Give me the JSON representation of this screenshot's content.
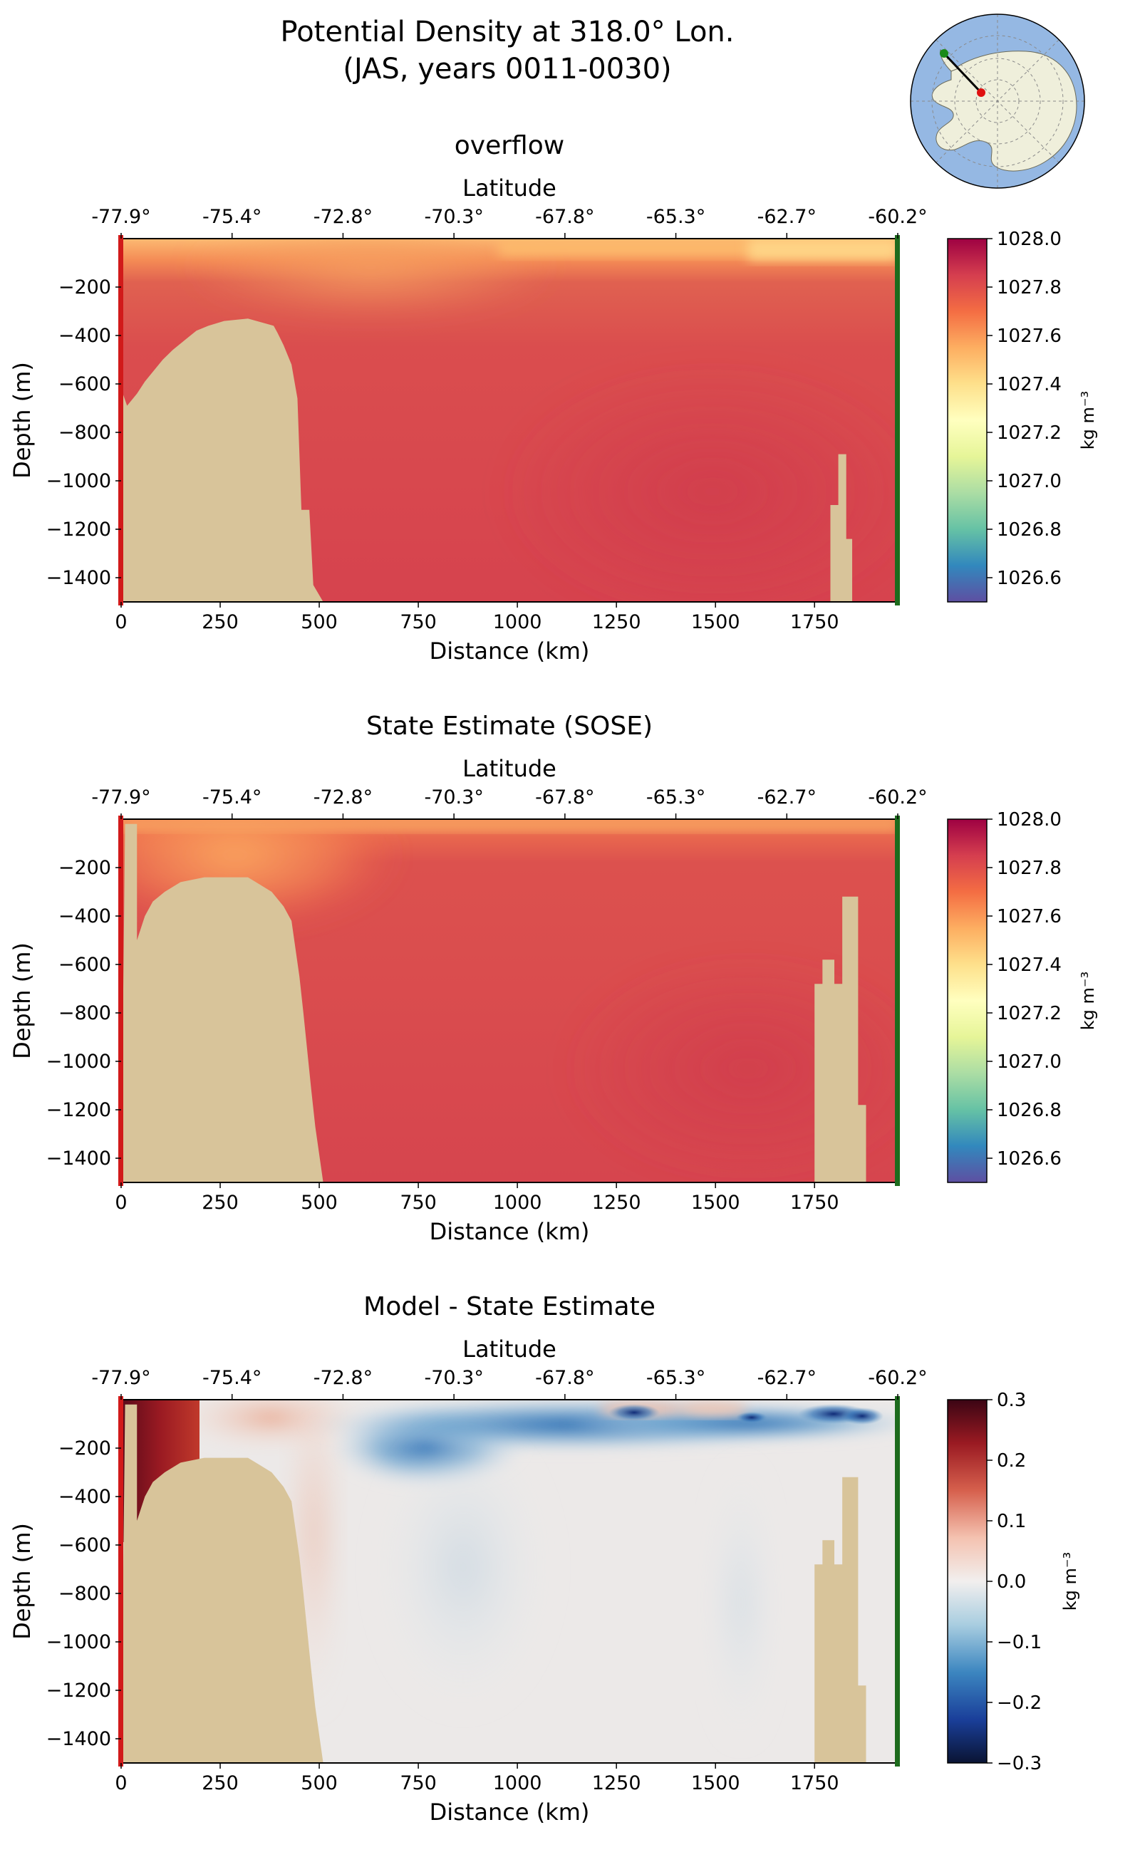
{
  "figure": {
    "title_line1": "Potential Density at 318.0° Lon.",
    "title_line2": "(JAS, years 0011-0030)"
  },
  "inset_map": {
    "land_color": "#efefdb",
    "ocean_color": "#95b8e3",
    "start_marker_color": "#1a8a1a",
    "end_marker_color": "#e01010"
  },
  "chart_data": [
    {
      "type": "heatmap",
      "title": "overflow",
      "xlabel": "Distance (km)",
      "ylabel": "Depth (m)",
      "top_axis_label": "Latitude",
      "top_tick_labels": [
        "-77.9°",
        "-75.4°",
        "-72.8°",
        "-70.3°",
        "-67.8°",
        "-65.3°",
        "-62.7°",
        "-60.2°"
      ],
      "top_tick_positions_km": [
        0,
        280,
        560,
        840,
        1120,
        1400,
        1680,
        1960
      ],
      "xticks": [
        0,
        250,
        500,
        750,
        1000,
        1250,
        1500,
        1750
      ],
      "yticks": [
        -200,
        -400,
        -600,
        -800,
        -1000,
        -1200,
        -1400
      ],
      "xlim": [
        0,
        1960
      ],
      "ylim": [
        -1500,
        0
      ],
      "colorbar": {
        "label": "kg m⁻³",
        "ticks": [
          "1028.0",
          "1027.8",
          "1027.6",
          "1027.4",
          "1027.2",
          "1027.0",
          "1026.8",
          "1026.6"
        ],
        "range": [
          1026.5,
          1028.0
        ],
        "cmap": "Spectral_r"
      },
      "interior_density": 1027.83,
      "surface_layer_density": 1027.45,
      "bathymetry": [
        [
          0,
          -620
        ],
        [
          15,
          -690
        ],
        [
          40,
          -640
        ],
        [
          60,
          -590
        ],
        [
          80,
          -550
        ],
        [
          105,
          -500
        ],
        [
          130,
          -460
        ],
        [
          160,
          -420
        ],
        [
          190,
          -380
        ],
        [
          220,
          -360
        ],
        [
          260,
          -340
        ],
        [
          320,
          -330
        ],
        [
          385,
          -360
        ],
        [
          395,
          -390
        ],
        [
          410,
          -440
        ],
        [
          430,
          -520
        ],
        [
          445,
          -660
        ],
        [
          455,
          -1120
        ],
        [
          475,
          -1120
        ],
        [
          485,
          -1430
        ],
        [
          510,
          -1500
        ]
      ],
      "seamount": [
        [
          1790,
          -1500
        ],
        [
          1790,
          -1100
        ],
        [
          1810,
          -1100
        ],
        [
          1810,
          -890
        ],
        [
          1830,
          -890
        ],
        [
          1830,
          -1240
        ],
        [
          1845,
          -1240
        ],
        [
          1845,
          -1500
        ]
      ]
    },
    {
      "type": "heatmap",
      "title": "State Estimate (SOSE)",
      "xlabel": "Distance (km)",
      "ylabel": "Depth (m)",
      "top_axis_label": "Latitude",
      "top_tick_labels": [
        "-77.9°",
        "-75.4°",
        "-72.8°",
        "-70.3°",
        "-67.8°",
        "-65.3°",
        "-62.7°",
        "-60.2°"
      ],
      "top_tick_positions_km": [
        0,
        280,
        560,
        840,
        1120,
        1400,
        1680,
        1960
      ],
      "xticks": [
        0,
        250,
        500,
        750,
        1000,
        1250,
        1500,
        1750
      ],
      "yticks": [
        -200,
        -400,
        -600,
        -800,
        -1000,
        -1200,
        -1400
      ],
      "xlim": [
        0,
        1960
      ],
      "ylim": [
        -1500,
        0
      ],
      "colorbar": {
        "label": "kg m⁻³",
        "ticks": [
          "1028.0",
          "1027.8",
          "1027.6",
          "1027.4",
          "1027.2",
          "1027.0",
          "1026.8",
          "1026.6"
        ],
        "range": [
          1026.5,
          1028.0
        ],
        "cmap": "Spectral_r"
      },
      "interior_density": 1027.82,
      "surface_layer_density": 1027.5,
      "bathymetry": [
        [
          0,
          -1500
        ],
        [
          10,
          -20
        ],
        [
          40,
          -20
        ],
        [
          40,
          -500
        ],
        [
          60,
          -400
        ],
        [
          80,
          -340
        ],
        [
          110,
          -300
        ],
        [
          150,
          -260
        ],
        [
          210,
          -240
        ],
        [
          320,
          -240
        ],
        [
          350,
          -270
        ],
        [
          380,
          -300
        ],
        [
          410,
          -360
        ],
        [
          430,
          -420
        ],
        [
          450,
          -650
        ],
        [
          460,
          -800
        ],
        [
          470,
          -960
        ],
        [
          480,
          -1120
        ],
        [
          490,
          -1270
        ],
        [
          510,
          -1500
        ],
        [
          540,
          -1500
        ]
      ],
      "seamount": [
        [
          1750,
          -1500
        ],
        [
          1750,
          -680
        ],
        [
          1770,
          -680
        ],
        [
          1770,
          -580
        ],
        [
          1800,
          -580
        ],
        [
          1800,
          -680
        ],
        [
          1820,
          -680
        ],
        [
          1820,
          -320
        ],
        [
          1860,
          -320
        ],
        [
          1860,
          -1180
        ],
        [
          1880,
          -1180
        ],
        [
          1880,
          -1500
        ]
      ]
    },
    {
      "type": "heatmap",
      "title": "Model - State Estimate",
      "xlabel": "Distance (km)",
      "ylabel": "Depth (m)",
      "top_axis_label": "Latitude",
      "top_tick_labels": [
        "-77.9°",
        "-75.4°",
        "-72.8°",
        "-70.3°",
        "-67.8°",
        "-65.3°",
        "-62.7°",
        "-60.2°"
      ],
      "top_tick_positions_km": [
        0,
        280,
        560,
        840,
        1120,
        1400,
        1680,
        1960
      ],
      "xticks": [
        0,
        250,
        500,
        750,
        1000,
        1250,
        1500,
        1750
      ],
      "yticks": [
        -200,
        -400,
        -600,
        -800,
        -1000,
        -1200,
        -1400
      ],
      "xlim": [
        0,
        1960
      ],
      "ylim": [
        -1500,
        0
      ],
      "colorbar": {
        "label": "kg m⁻³",
        "ticks": [
          "0.3",
          "0.2",
          "0.1",
          "0.0",
          "−0.1",
          "−0.2",
          "−0.3"
        ],
        "range": [
          -0.3,
          0.3
        ],
        "cmap": "RdBu_r"
      },
      "difference_max": 0.3,
      "difference_min": -0.25,
      "bathymetry": [
        [
          0,
          -1500
        ],
        [
          10,
          -20
        ],
        [
          40,
          -20
        ],
        [
          40,
          -500
        ],
        [
          60,
          -400
        ],
        [
          80,
          -340
        ],
        [
          110,
          -300
        ],
        [
          150,
          -260
        ],
        [
          210,
          -240
        ],
        [
          320,
          -240
        ],
        [
          350,
          -270
        ],
        [
          380,
          -300
        ],
        [
          410,
          -360
        ],
        [
          430,
          -420
        ],
        [
          450,
          -650
        ],
        [
          460,
          -800
        ],
        [
          470,
          -960
        ],
        [
          480,
          -1120
        ],
        [
          490,
          -1270
        ],
        [
          510,
          -1500
        ],
        [
          540,
          -1500
        ]
      ],
      "seamount": [
        [
          1750,
          -1500
        ],
        [
          1750,
          -680
        ],
        [
          1770,
          -680
        ],
        [
          1770,
          -580
        ],
        [
          1800,
          -580
        ],
        [
          1800,
          -680
        ],
        [
          1820,
          -680
        ],
        [
          1820,
          -320
        ],
        [
          1860,
          -320
        ],
        [
          1860,
          -1180
        ],
        [
          1880,
          -1180
        ],
        [
          1880,
          -1500
        ]
      ]
    }
  ]
}
